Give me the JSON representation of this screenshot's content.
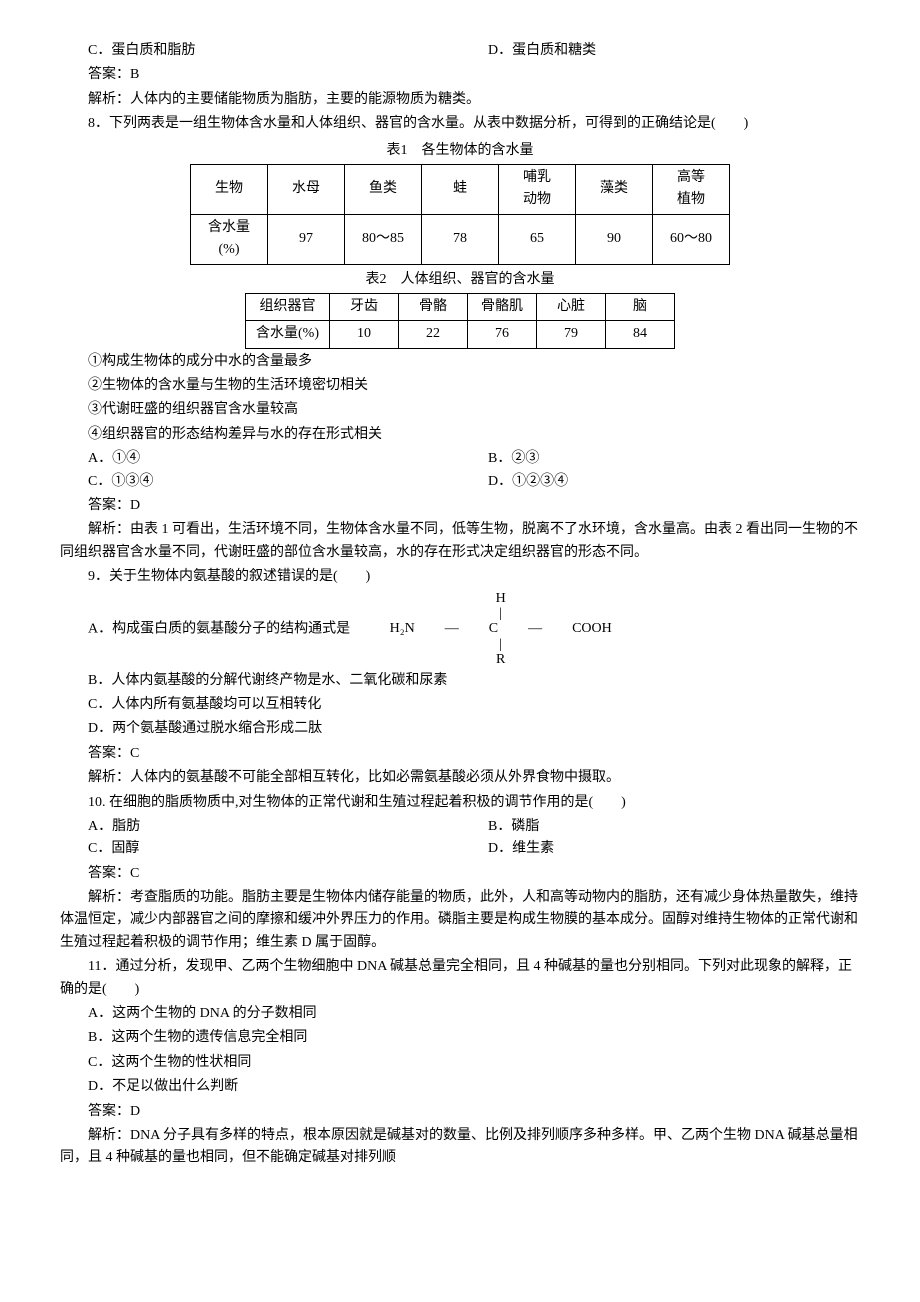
{
  "q7": {
    "optC": "C．蛋白质和脂肪",
    "optD": "D．蛋白质和糖类",
    "answer": "答案：B",
    "explain": "解析：人体内的主要储能物质为脂肪，主要的能源物质为糖类。"
  },
  "q8": {
    "stem": "8．下列两表是一组生物体含水量和人体组织、器官的含水量。从表中数据分析，可得到的正确结论是(　　)",
    "cap1": "表1　各生物体的含水量",
    "t1": {
      "headers": [
        "生物",
        "水母",
        "鱼类",
        "蛙",
        "哺乳\n动物",
        "藻类",
        "高等\n植物"
      ],
      "row_label": "含水量\n(%)",
      "values": [
        "97",
        "80～85",
        "78",
        "65",
        "90",
        "60～80"
      ]
    },
    "cap2": "表2　人体组织、器官的含水量",
    "t2": {
      "headers": [
        "组织器官",
        "牙齿",
        "骨骼",
        "骨骼肌",
        "心脏",
        "脑"
      ],
      "row_label": "含水量(%)",
      "values": [
        "10",
        "22",
        "76",
        "79",
        "84"
      ]
    },
    "s1": "①构成生物体的成分中水的含量最多",
    "s2": "②生物体的含水量与生物的生活环境密切相关",
    "s3": "③代谢旺盛的组织器官含水量较高",
    "s4": "④组织器官的形态结构差异与水的存在形式相关",
    "optA": "A．①④",
    "optB": "B．②③",
    "optC": "C．①③④",
    "optD": "D．①②③④",
    "answer": "答案：D",
    "explain": "解析：由表 1 可看出，生活环境不同，生物体含水量不同，低等生物，脱离不了水环境，含水量高。由表 2 看出同一生物的不同组织器官含水量不同，代谢旺盛的部位含水量较高，水的存在形式决定组织器官的形态不同。"
  },
  "q9": {
    "stem": "9．关于生物体内氨基酸的叙述错误的是(　　)",
    "optA_prefix": "A．构成蛋白质的氨基酸分子的结构通式是",
    "formula": {
      "top": "H",
      "left": "H₂N",
      "mid": "C",
      "right": "COOH",
      "bottom": "R"
    },
    "optB": "B．人体内氨基酸的分解代谢终产物是水、二氧化碳和尿素",
    "optC": "C．人体内所有氨基酸均可以互相转化",
    "optD": "D．两个氨基酸通过脱水缩合形成二肽",
    "answer": "答案：C",
    "explain": "解析：人体内的氨基酸不可能全部相互转化，比如必需氨基酸必须从外界食物中摄取。"
  },
  "q10": {
    "stem": "10. 在细胞的脂质物质中,对生物体的正常代谢和生殖过程起着积极的调节作用的是(　　)",
    "optA": "A．脂肪",
    "optB": "B．磷脂",
    "optC": "C．固醇",
    "optD": "D．维生素",
    "answer": "答案：C",
    "explain": "解析：考查脂质的功能。脂肪主要是生物体内储存能量的物质，此外，人和高等动物内的脂肪，还有减少身体热量散失，维持体温恒定，减少内部器官之间的摩擦和缓冲外界压力的作用。磷脂主要是构成生物膜的基本成分。固醇对维持生物体的正常代谢和生殖过程起着积极的调节作用；维生素 D 属于固醇。"
  },
  "q11": {
    "stem": "11．通过分析，发现甲、乙两个生物细胞中 DNA 碱基总量完全相同，且 4 种碱基的量也分别相同。下列对此现象的解释，正确的是(　　)",
    "optA": "A．这两个生物的 DNA 的分子数相同",
    "optB": "B．这两个生物的遗传信息完全相同",
    "optC": "C．这两个生物的性状相同",
    "optD": "D．不足以做出什么判断",
    "answer": "答案：D",
    "explain": "解析：DNA 分子具有多样的特点，根本原因就是碱基对的数量、比例及排列顺序多种多样。甲、乙两个生物 DNA 碱基总量相同，且 4 种碱基的量也相同，但不能确定碱基对排列顺"
  }
}
